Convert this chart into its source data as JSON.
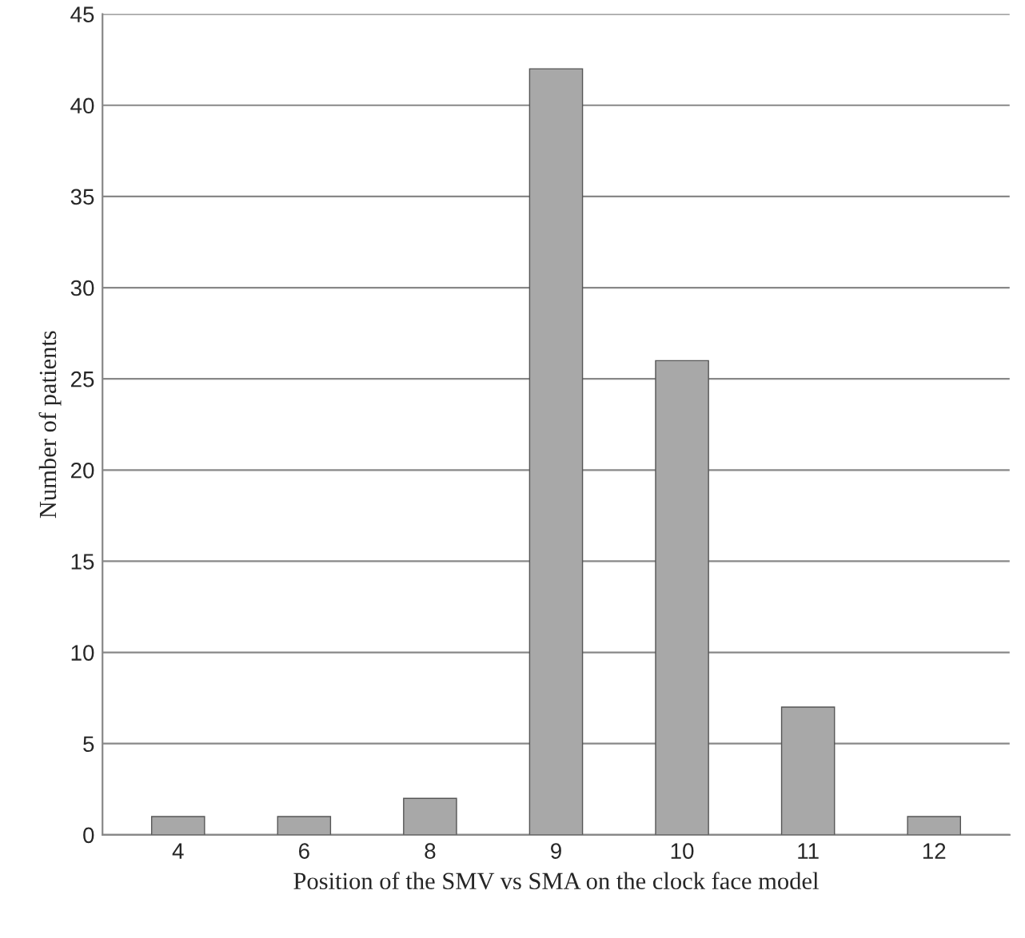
{
  "chart_data": {
    "type": "bar",
    "xlabel": "Position of the SMV vs SMA on the clock face model",
    "ylabel": "Number of patients",
    "categories": [
      "4",
      "6",
      "8",
      "9",
      "10",
      "11",
      "12"
    ],
    "values": [
      1,
      1,
      2,
      42,
      26,
      7,
      1
    ],
    "color": "#a8a8a8",
    "ylim": [
      0,
      45
    ],
    "yticks": [
      0,
      5,
      10,
      15,
      20,
      25,
      30,
      35,
      40,
      45
    ],
    "grid": "y"
  }
}
